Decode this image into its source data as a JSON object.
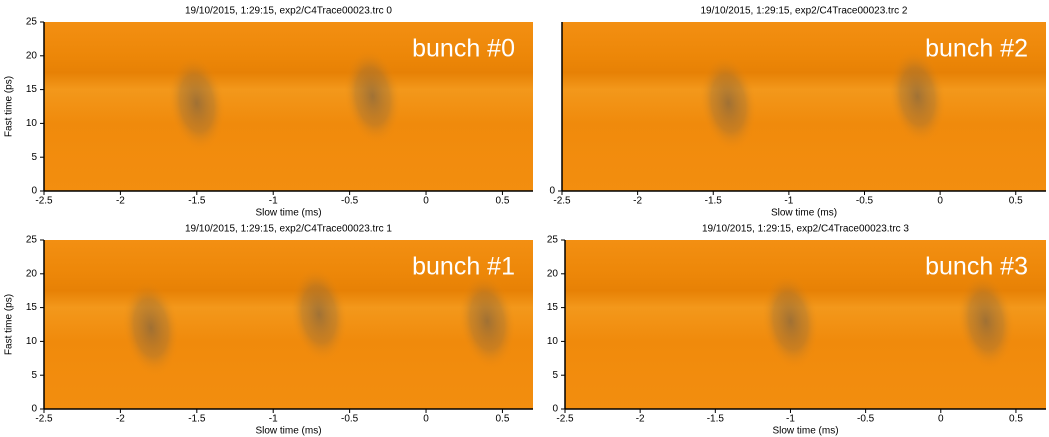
{
  "chart_data": [
    {
      "type": "heatmap",
      "title": "19/10/2015,  1:29:15, exp2/C4Trace00023.trc 0",
      "annotation": "bunch #0",
      "xlabel": "Slow time (ms)",
      "ylabel": "Fast time (ps)",
      "xlim": [
        -2.5,
        0.7
      ],
      "xticks": [
        -2.5,
        -2,
        -1.5,
        -1,
        -0.5,
        0,
        0.5
      ],
      "ylim": [
        0,
        25
      ],
      "yticks": [
        0,
        5,
        10,
        15,
        20,
        25
      ],
      "blobs": [
        {
          "x": -1.5,
          "y": 13
        },
        {
          "x": -0.35,
          "y": 14
        }
      ],
      "color": "#f28c0a"
    },
    {
      "type": "heatmap",
      "title": "19/10/2015,  1:29:15, exp2/C4Trace00023.trc 2",
      "annotation": "bunch #2",
      "xlabel": "Slow time (ms)",
      "xlim": [
        -2.5,
        0.7
      ],
      "xticks": [
        -2.5,
        -2,
        -1.5,
        -1,
        -0.5,
        0,
        0.5
      ],
      "ylim": [
        0,
        25
      ],
      "yticks": [
        0
      ],
      "blobs": [
        {
          "x": -1.4,
          "y": 13
        },
        {
          "x": -0.15,
          "y": 14
        }
      ],
      "color": "#f28c0a"
    },
    {
      "type": "heatmap",
      "title": "19/10/2015,  1:29:15, exp2/C4Trace00023.trc 1",
      "annotation": "bunch #1",
      "xlabel": "Slow time (ms)",
      "ylabel": "Fast time (ps)",
      "xlim": [
        -2.5,
        0.7
      ],
      "xticks": [
        -2.5,
        -2,
        -1.5,
        -1,
        -0.5,
        0,
        0.5
      ],
      "ylim": [
        0,
        25
      ],
      "yticks": [
        0,
        5,
        10,
        15,
        20,
        25
      ],
      "blobs": [
        {
          "x": -1.8,
          "y": 12
        },
        {
          "x": -0.7,
          "y": 14
        },
        {
          "x": 0.4,
          "y": 13
        }
      ],
      "color": "#f28c0a"
    },
    {
      "type": "heatmap",
      "title": "19/10/2015,  1:29:15, exp2/C4Trace00023.trc 3",
      "annotation": "bunch #3",
      "xlabel": "Slow time (ms)",
      "xlim": [
        -2.5,
        0.7
      ],
      "xticks": [
        -2.5,
        -2,
        -1.5,
        -1,
        -0.5,
        0,
        0.5
      ],
      "ylim": [
        0,
        25
      ],
      "yticks": [
        0,
        5,
        10,
        15,
        20,
        25
      ],
      "blobs": [
        {
          "x": -1.0,
          "y": 13
        },
        {
          "x": 0.3,
          "y": 13
        }
      ],
      "color": "#f28c0a"
    }
  ]
}
